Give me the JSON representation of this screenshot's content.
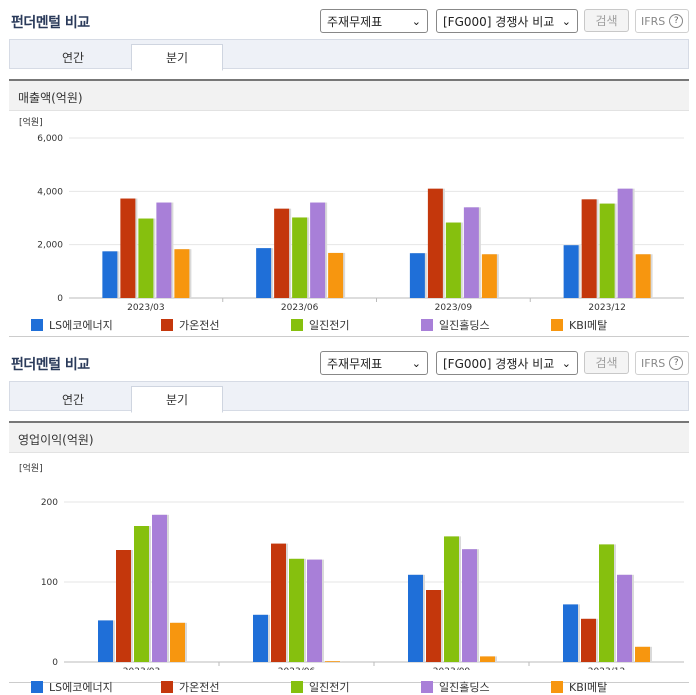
{
  "toolbar": {
    "title": "펀더멘털 비교",
    "statement_select": "주재무제표",
    "compare_select": "[FG000] 경쟁사 비교",
    "search_label": "검색",
    "ifrs_label": "IFRS",
    "help_glyph": "?"
  },
  "tabs": [
    {
      "label": "연간"
    },
    {
      "label": "분기"
    }
  ],
  "active_tab": 1,
  "colors": {
    "LS에코에너지": "#1f6fd8",
    "가온전선": "#c4370c",
    "일진전기": "#86c00e",
    "일진홀딩스": "#a87fd8",
    "KBI메탈": "#f7960f"
  },
  "sections": [
    {
      "chart_title": "매출액(억원)",
      "chart_data": {
        "type": "bar",
        "unit_label": "[억원]",
        "categories": [
          "2023/03",
          "2023/06",
          "2023/09",
          "2023/12"
        ],
        "ylim": [
          0,
          6000
        ],
        "yticks": [
          "0",
          "2,000",
          "4,000",
          "6,000"
        ],
        "ytick_values": [
          0,
          2000,
          4000,
          6000
        ],
        "series": [
          {
            "name": "LS에코에너지",
            "values": [
              1750,
              1870,
              1680,
              1980
            ]
          },
          {
            "name": "가온전선",
            "values": [
              3730,
              3350,
              4100,
              3700
            ]
          },
          {
            "name": "일진전기",
            "values": [
              2980,
              3020,
              2830,
              3540
            ]
          },
          {
            "name": "일진홀딩스",
            "values": [
              3580,
              3580,
              3400,
              4100
            ]
          },
          {
            "name": "KBI메탈",
            "values": [
              1830,
              1690,
              1640,
              1640
            ]
          }
        ]
      }
    },
    {
      "chart_title": "영업이익(억원)",
      "chart_data": {
        "type": "bar",
        "unit_label": "[억원]",
        "categories": [
          "2023/03",
          "2023/06",
          "2023/09",
          "2023/12"
        ],
        "ylim": [
          0,
          200
        ],
        "yticks": [
          "0",
          "100",
          "200"
        ],
        "ytick_values": [
          0,
          100,
          200
        ],
        "series": [
          {
            "name": "LS에코에너지",
            "values": [
              52,
              59,
              109,
              72
            ]
          },
          {
            "name": "가온전선",
            "values": [
              140,
              148,
              90,
              54
            ]
          },
          {
            "name": "일진전기",
            "values": [
              170,
              129,
              157,
              147
            ]
          },
          {
            "name": "일진홀딩스",
            "values": [
              184,
              128,
              141,
              109
            ]
          },
          {
            "name": "KBI메탈",
            "values": [
              49,
              1,
              7,
              19
            ]
          }
        ]
      }
    }
  ]
}
